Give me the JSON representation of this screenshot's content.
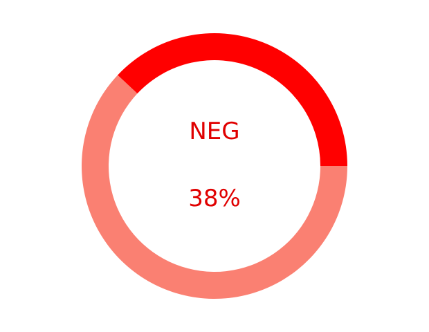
{
  "chart_data": {
    "type": "pie",
    "style": "donut",
    "label": "NEG",
    "value_text": "38%",
    "slices": [
      {
        "value": 38,
        "color": "#ff0000"
      },
      {
        "value": 62,
        "color": "#fa8072"
      }
    ],
    "start": "3 o'clock",
    "direction": "counter-clockwise"
  },
  "colors": {
    "text": "#e00000"
  }
}
